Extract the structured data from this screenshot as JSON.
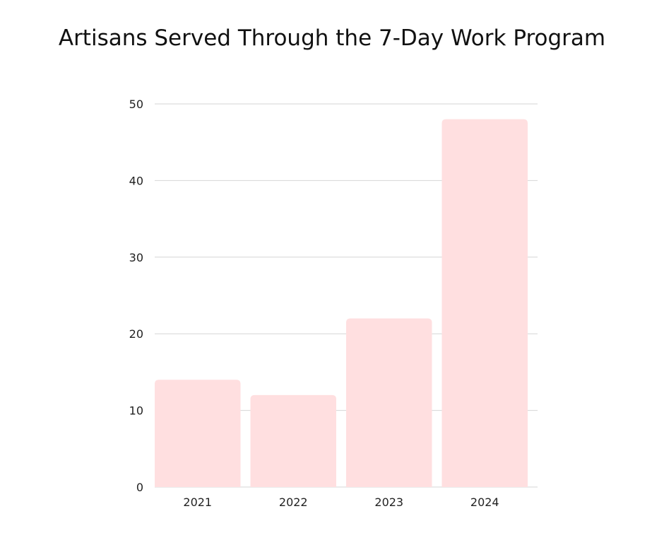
{
  "chart_data": {
    "type": "bar",
    "title": "Artisans Served Through the 7-Day Work Program",
    "categories": [
      "2021",
      "2022",
      "2023",
      "2024"
    ],
    "values": [
      14,
      12,
      22,
      48
    ],
    "xlabel": "",
    "ylabel": "",
    "ylim": [
      0,
      50
    ],
    "yticks": [
      "0",
      "10",
      "20",
      "30",
      "40",
      "50"
    ],
    "grid": true,
    "legend": "none",
    "bar_color": "#ffdfe0"
  }
}
